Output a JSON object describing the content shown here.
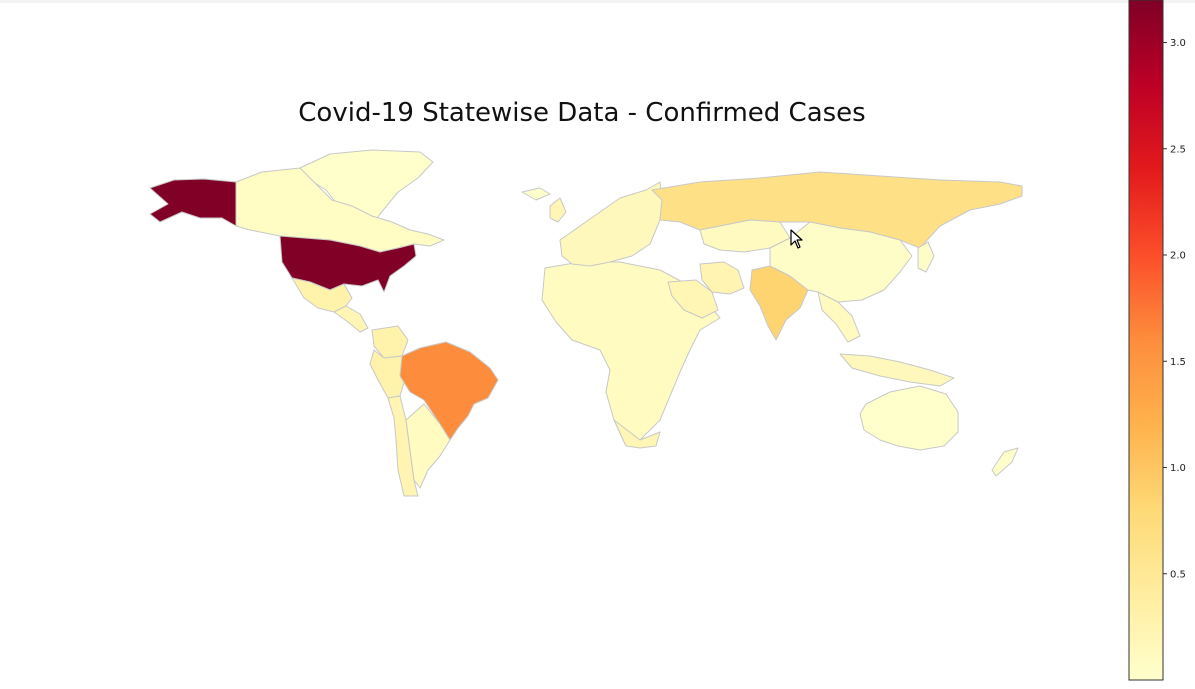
{
  "title": "Covid-19 Statewise Data - Confirmed Cases",
  "colormap": {
    "name": "YlOrRd",
    "stops": [
      "#ffffcc",
      "#ffeda0",
      "#fed976",
      "#feb24c",
      "#fd8d3c",
      "#fc4e2a",
      "#e31a1c",
      "#bd0026",
      "#800026"
    ],
    "vmin": 0,
    "vmax": 3.2,
    "ticks": [
      "0.5",
      "1.0",
      "1.5",
      "2.0",
      "2.5",
      "3.0"
    ],
    "tick_values": [
      0.5,
      1.0,
      1.5,
      2.0,
      2.5,
      3.0
    ]
  },
  "countries": [
    {
      "name": "United States",
      "value": 3.2
    },
    {
      "name": "Alaska",
      "value": 3.2
    },
    {
      "name": "Canada",
      "value": 0.07
    },
    {
      "name": "Greenland",
      "value": 0.0
    },
    {
      "name": "Mexico",
      "value": 0.3
    },
    {
      "name": "Brazil",
      "value": 1.6
    },
    {
      "name": "Russia",
      "value": 0.65
    },
    {
      "name": "India",
      "value": 0.85
    },
    {
      "name": "China",
      "value": 0.05
    },
    {
      "name": "Peru",
      "value": 0.3
    },
    {
      "name": "Chile",
      "value": 0.25
    },
    {
      "name": "Argentina",
      "value": 0.1
    },
    {
      "name": "South Africa",
      "value": 0.2
    },
    {
      "name": "Saudi Arabia",
      "value": 0.2
    },
    {
      "name": "Iran",
      "value": 0.25
    },
    {
      "name": "Australia",
      "value": 0.01
    }
  ],
  "icons": {
    "cursor": "mouse-pointer-icon"
  }
}
